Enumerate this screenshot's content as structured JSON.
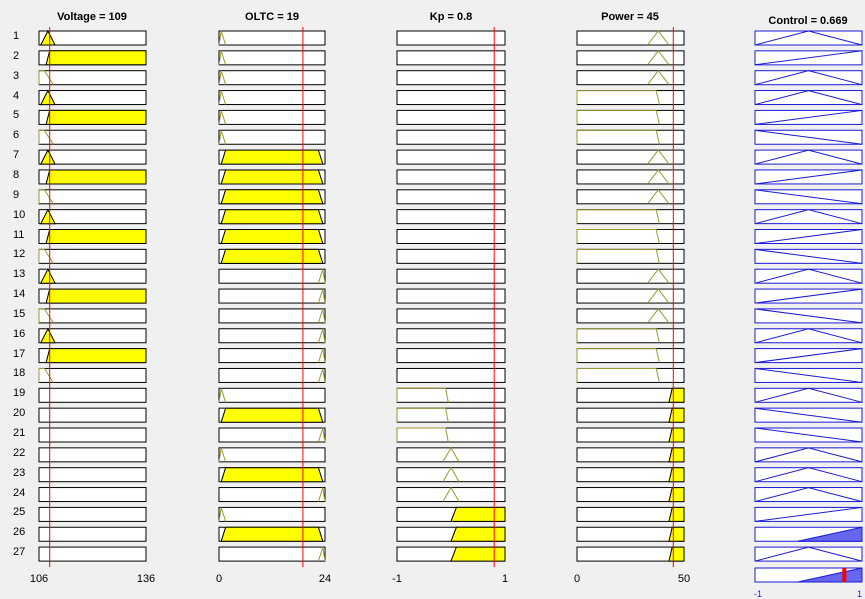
{
  "titles": {
    "voltage": "Voltage = 109",
    "oltc": "OLTC = 19",
    "kp": "Kp = 0.8",
    "power": "Power = 45",
    "control": "Control = 0.669"
  },
  "rules": [
    "1",
    "2",
    "3",
    "4",
    "5",
    "6",
    "7",
    "8",
    "9",
    "10",
    "11",
    "12",
    "13",
    "14",
    "15",
    "16",
    "17",
    "18",
    "19",
    "20",
    "21",
    "22",
    "23",
    "24",
    "25",
    "26",
    "27"
  ],
  "axis_ticks": {
    "voltage_min": "106",
    "voltage_max": "136",
    "oltc_min": "0",
    "oltc_max": "24",
    "kp_min": "-1",
    "kp_max": "1",
    "power_min": "0",
    "power_max": "50",
    "control_min": "-1",
    "control_max": "1"
  },
  "inputs": {
    "voltage": {
      "range": [
        106,
        136
      ],
      "value": 109
    },
    "oltc": {
      "range": [
        0,
        24
      ],
      "value": 19
    },
    "kp": {
      "range": [
        -1,
        1
      ],
      "value": 0.8
    },
    "power": {
      "range": [
        0,
        50
      ],
      "value": 45
    },
    "control": {
      "range": [
        -1,
        1
      ],
      "value": 0.669
    }
  },
  "mf_per_rule": {
    "voltage": [
      "M",
      "H",
      "L",
      "M",
      "H",
      "L",
      "M",
      "H",
      "L",
      "M",
      "H",
      "L",
      "M",
      "H",
      "L",
      "M",
      "H",
      "L",
      "N",
      "N",
      "N",
      "N",
      "N",
      "N",
      "N",
      "N",
      "N"
    ],
    "oltc": [
      "L",
      "L",
      "L",
      "L",
      "L",
      "L",
      "M",
      "M",
      "M",
      "M",
      "M",
      "M",
      "H",
      "H",
      "H",
      "H",
      "H",
      "H",
      "L",
      "M",
      "H",
      "L",
      "M",
      "H",
      "L",
      "M",
      "H"
    ],
    "kp": [
      "N",
      "N",
      "N",
      "N",
      "N",
      "N",
      "N",
      "N",
      "N",
      "N",
      "N",
      "N",
      "N",
      "N",
      "N",
      "N",
      "N",
      "N",
      "L",
      "L",
      "L",
      "M",
      "M",
      "M",
      "H",
      "H",
      "H"
    ],
    "power": [
      "M",
      "M",
      "M",
      "L",
      "L",
      "L",
      "M",
      "M",
      "M",
      "L",
      "L",
      "L",
      "M",
      "M",
      "M",
      "L",
      "L",
      "L",
      "H",
      "H",
      "H",
      "H",
      "H",
      "H",
      "H",
      "H",
      "H"
    ],
    "control": [
      "ZR",
      "PS",
      "ZR",
      "ZR",
      "PS",
      "NS",
      "ZR",
      "PS",
      "NS",
      "ZR",
      "PS",
      "NS",
      "ZR",
      "PS",
      "NS",
      "ZR",
      "PS",
      "NS",
      "ZR",
      "NS",
      "NS",
      "ZR",
      "ZR",
      "ZR",
      "PS",
      "PB",
      "ZR"
    ]
  },
  "colors": {
    "background": "#f0f0f0",
    "fill": "#ffff00",
    "mf_line": "#999933",
    "value_line": "#ff0000",
    "output_line": "#1a1ad6",
    "output_fill": "#6666ee"
  }
}
